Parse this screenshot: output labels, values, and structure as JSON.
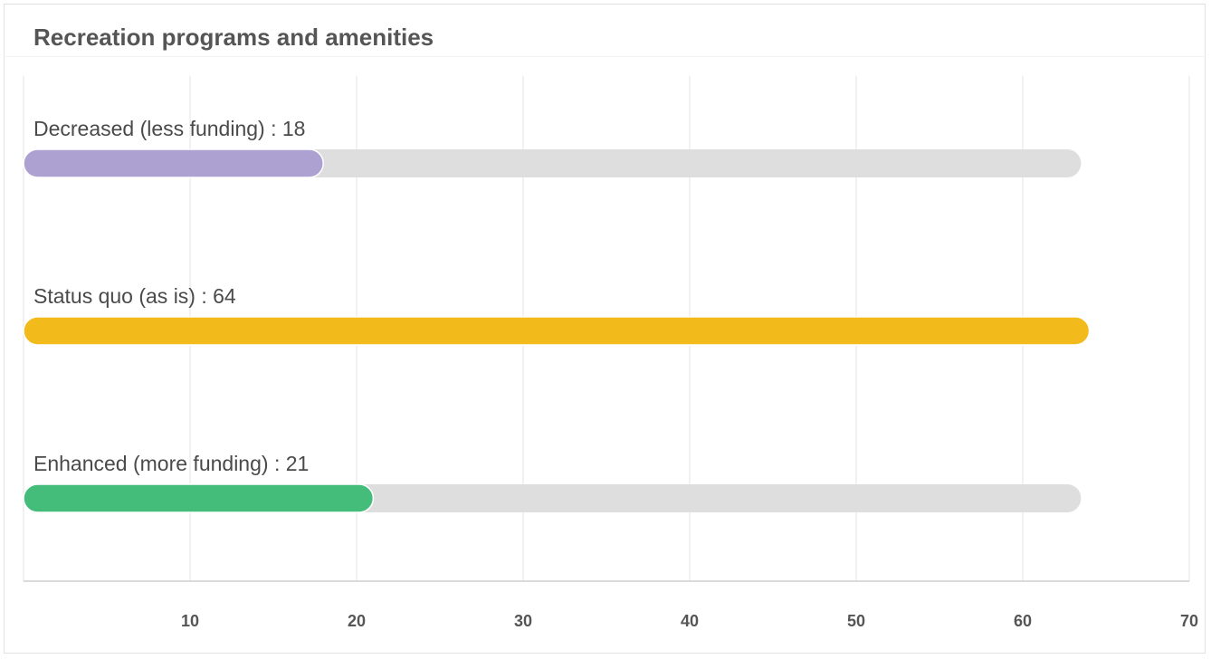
{
  "chart_data": {
    "type": "bar",
    "orientation": "horizontal",
    "title": "Recreation programs and amenities",
    "xlabel": "",
    "ylabel": "",
    "categories": [
      "Decreased (less funding)",
      "Status quo (as is)",
      "Enhanced (more funding)"
    ],
    "values": [
      18,
      64,
      21
    ],
    "labels": [
      "Decreased (less funding) : 18",
      "Status quo (as is) : 64",
      "Enhanced (more funding) : 21"
    ],
    "colors": [
      "#ada1d1",
      "#f2bb1b",
      "#45bd7a"
    ],
    "track_color": "#dedede",
    "track_max": 63.5,
    "xlim": [
      0,
      70
    ],
    "xticks": [
      10,
      20,
      30,
      40,
      50,
      60,
      70
    ],
    "grid": true,
    "legend": "none"
  }
}
